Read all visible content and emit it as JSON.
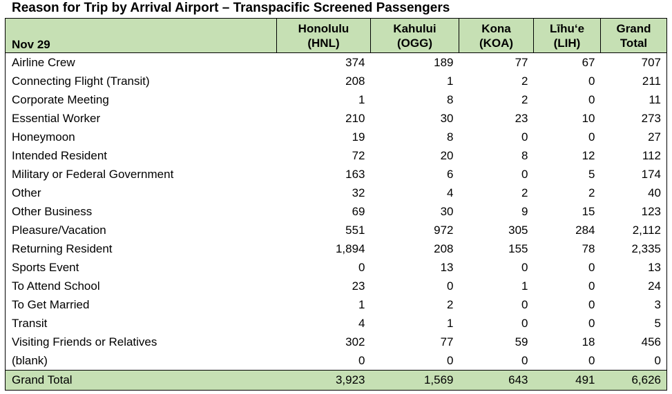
{
  "title": "Reason for Trip by Arrival Airport – Transpacific Screened Passengers",
  "table": {
    "date_header": "Nov 29",
    "columns": [
      {
        "line1": "Honolulu",
        "line2": "(HNL)"
      },
      {
        "line1": "Kahului",
        "line2": "(OGG)"
      },
      {
        "line1": "Kona",
        "line2": "(KOA)"
      },
      {
        "line1": "Līhu‘e",
        "line2": "(LIH)"
      },
      {
        "line1": "Grand",
        "line2": "Total"
      }
    ],
    "rows": [
      {
        "label": "Airline Crew",
        "values": [
          "374",
          "189",
          "77",
          "67",
          "707"
        ]
      },
      {
        "label": "Connecting Flight (Transit)",
        "values": [
          "208",
          "1",
          "2",
          "0",
          "211"
        ]
      },
      {
        "label": "Corporate Meeting",
        "values": [
          "1",
          "8",
          "2",
          "0",
          "11"
        ]
      },
      {
        "label": "Essential Worker",
        "values": [
          "210",
          "30",
          "23",
          "10",
          "273"
        ]
      },
      {
        "label": "Honeymoon",
        "values": [
          "19",
          "8",
          "0",
          "0",
          "27"
        ]
      },
      {
        "label": "Intended Resident",
        "values": [
          "72",
          "20",
          "8",
          "12",
          "112"
        ]
      },
      {
        "label": "Military or Federal Government",
        "values": [
          "163",
          "6",
          "0",
          "5",
          "174"
        ]
      },
      {
        "label": "Other",
        "values": [
          "32",
          "4",
          "2",
          "2",
          "40"
        ]
      },
      {
        "label": "Other Business",
        "values": [
          "69",
          "30",
          "9",
          "15",
          "123"
        ]
      },
      {
        "label": "Pleasure/Vacation",
        "values": [
          "551",
          "972",
          "305",
          "284",
          "2,112"
        ]
      },
      {
        "label": "Returning Resident",
        "values": [
          "1,894",
          "208",
          "155",
          "78",
          "2,335"
        ]
      },
      {
        "label": "Sports Event",
        "values": [
          "0",
          "13",
          "0",
          "0",
          "13"
        ]
      },
      {
        "label": "To Attend School",
        "values": [
          "23",
          "0",
          "1",
          "0",
          "24"
        ]
      },
      {
        "label": "To Get Married",
        "values": [
          "1",
          "2",
          "0",
          "0",
          "3"
        ]
      },
      {
        "label": "Transit",
        "values": [
          "4",
          "1",
          "0",
          "0",
          "5"
        ]
      },
      {
        "label": "Visiting Friends or Relatives",
        "values": [
          "302",
          "77",
          "59",
          "18",
          "456"
        ]
      },
      {
        "label": "(blank)",
        "values": [
          "0",
          "0",
          "0",
          "0",
          "0"
        ]
      }
    ],
    "total": {
      "label": "Grand Total",
      "values": [
        "3,923",
        "1,569",
        "643",
        "491",
        "6,626"
      ]
    }
  },
  "colors": {
    "header_fill": "#c6e0b4",
    "border": "#000000"
  }
}
